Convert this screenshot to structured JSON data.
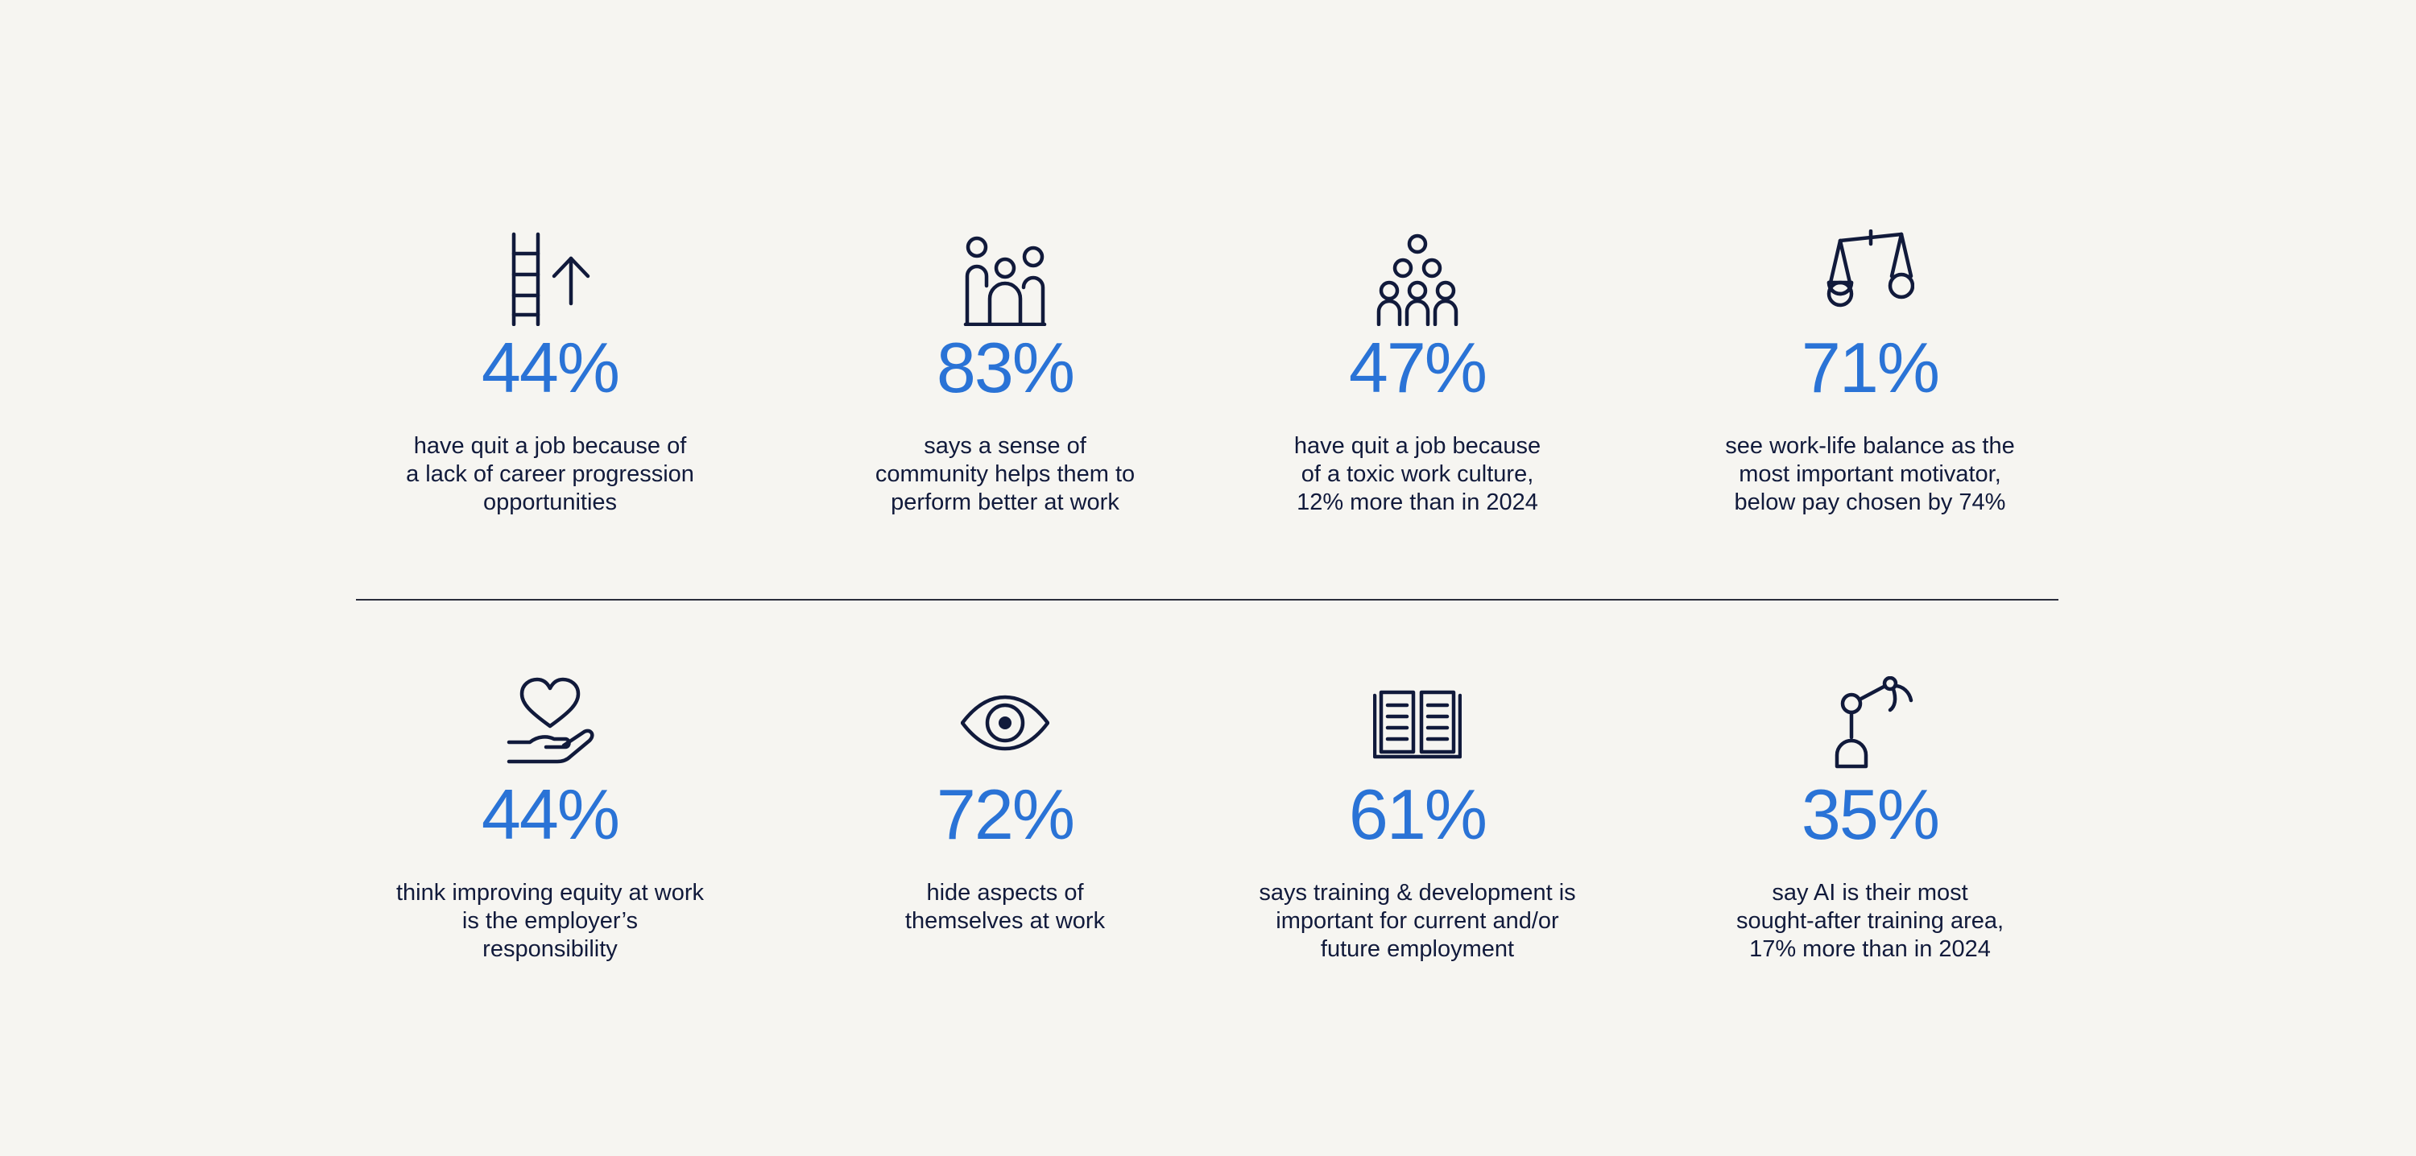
{
  "stats": [
    {
      "icon": "ladder-up-arrow-icon",
      "value": "44%",
      "description": "have quit a job because of\na lack of career progression\nopportunities"
    },
    {
      "icon": "community-people-icon",
      "value": "83%",
      "description": "says a sense of\ncommunity helps them to\nperform better at work"
    },
    {
      "icon": "group-people-icon",
      "value": "47%",
      "description": "have quit a job because\nof a toxic work culture,\n12% more than in 2024"
    },
    {
      "icon": "balance-scale-icon",
      "value": "71%",
      "description": "see work-life balance as the\nmost important motivator,\nbelow pay chosen by 74%"
    },
    {
      "icon": "heart-hand-icon",
      "value": "44%",
      "description": "think improving equity at work\nis the employer’s\nresponsibility"
    },
    {
      "icon": "eye-icon",
      "value": "72%",
      "description": "hide aspects of\nthemselves at work"
    },
    {
      "icon": "open-book-icon",
      "value": "61%",
      "description": "says training & development is\nimportant for current and/or\nfuture employment"
    },
    {
      "icon": "robot-arm-icon",
      "value": "35%",
      "description": "say AI is their most\nsought-after training area,\n17% more than in 2024"
    }
  ],
  "colors": {
    "background": "#f6f5f1",
    "accent": "#2a73d6",
    "text": "#111a3b",
    "divider": "#2a2d3c"
  }
}
